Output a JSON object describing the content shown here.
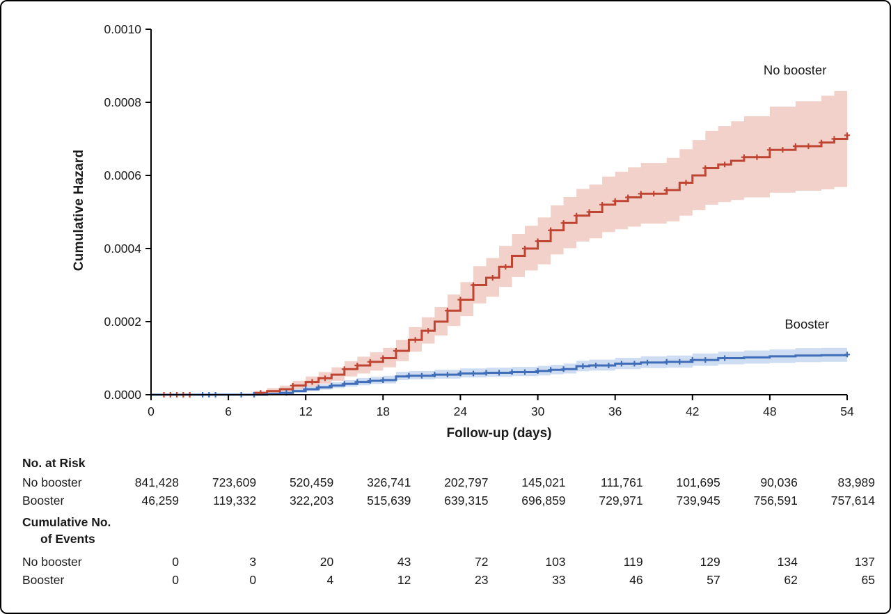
{
  "frame": {
    "background": "#ffffff",
    "border_color": "#000000"
  },
  "chart_data": {
    "type": "line",
    "subtype": "step-cumulative-hazard-with-confidence-bands",
    "title": "",
    "xlabel": "Follow-up (days)",
    "ylabel": "Cumulative Hazard",
    "xlim": [
      0,
      54
    ],
    "ylim": [
      0,
      0.001
    ],
    "xticks": [
      0,
      6,
      12,
      18,
      24,
      30,
      36,
      42,
      48,
      54
    ],
    "ytick_labels": [
      "0.0000",
      "0.0002",
      "0.0004",
      "0.0006",
      "0.0008",
      "0.0010"
    ],
    "grid": false,
    "legend_position": "end-of-line-labels",
    "series": [
      {
        "id": "no-booster",
        "name": "No booster",
        "color": "#bf4532",
        "band_color": "#e9b3a6",
        "label_day": 52.4,
        "label_value": 0.000876,
        "points": [
          [
            0,
            0,
            0,
            0
          ],
          [
            8,
            5e-06,
            2e-06,
            1e-05
          ],
          [
            9,
            1e-05,
            5e-06,
            1.8e-05
          ],
          [
            10,
            1.5e-05,
            8e-06,
            2.5e-05
          ],
          [
            11,
            2.5e-05,
            1.5e-05,
            3.8e-05
          ],
          [
            12,
            3.5e-05,
            2.2e-05,
            5e-05
          ],
          [
            13,
            4.5e-05,
            3e-05,
            6.2e-05
          ],
          [
            14,
            5.5e-05,
            3.8e-05,
            7.5e-05
          ],
          [
            15,
            7e-05,
            5e-05,
            9.2e-05
          ],
          [
            16,
            8e-05,
            5.8e-05,
            0.000104
          ],
          [
            17,
            9e-05,
            6.6e-05,
            0.000116
          ],
          [
            18,
            0.0001,
            7.5e-05,
            0.000128
          ],
          [
            19,
            0.00012,
            9.2e-05,
            0.00015
          ],
          [
            20,
            0.00015,
            0.000118,
            0.000185
          ],
          [
            21,
            0.000175,
            0.00014,
            0.000212
          ],
          [
            22,
            0.0002,
            0.000162,
            0.00024
          ],
          [
            23,
            0.00023,
            0.000188,
            0.000274
          ],
          [
            24,
            0.00026,
            0.000215,
            0.000308
          ],
          [
            25,
            0.0003,
            0.00025,
            0.000352
          ],
          [
            26,
            0.00032,
            0.000268,
            0.000374
          ],
          [
            27,
            0.00035,
            0.000295,
            0.000407
          ],
          [
            28,
            0.00038,
            0.000322,
            0.00044
          ],
          [
            29,
            0.0004,
            0.00034,
            0.000462
          ],
          [
            30,
            0.00042,
            0.000357,
            0.000485
          ],
          [
            31,
            0.00045,
            0.000384,
            0.000518
          ],
          [
            32,
            0.00047,
            0.000401,
            0.000541
          ],
          [
            33,
            0.00049,
            0.000419,
            0.000563
          ],
          [
            34,
            0.0005,
            0.000428,
            0.000575
          ],
          [
            35,
            0.00052,
            0.000445,
            0.000597
          ],
          [
            36,
            0.00053,
            0.000453,
            0.00061
          ],
          [
            37,
            0.00054,
            0.00046,
            0.000622
          ],
          [
            38,
            0.00055,
            0.000468,
            0.000634
          ],
          [
            40,
            0.00056,
            0.000474,
            0.000648
          ],
          [
            41,
            0.00058,
            0.00049,
            0.000672
          ],
          [
            42,
            0.0006,
            0.000505,
            0.000697
          ],
          [
            43,
            0.00062,
            0.00052,
            0.000722
          ],
          [
            44,
            0.00063,
            0.000527,
            0.000735
          ],
          [
            45,
            0.00064,
            0.000533,
            0.000748
          ],
          [
            46,
            0.00065,
            0.00054,
            0.000762
          ],
          [
            48,
            0.00067,
            0.000553,
            0.000788
          ],
          [
            50,
            0.00068,
            0.000558,
            0.000803
          ],
          [
            52,
            0.00069,
            0.000562,
            0.000818
          ],
          [
            53,
            0.0007,
            0.000568,
            0.000831
          ],
          [
            54,
            0.00071,
            0.000573,
            0.000843
          ]
        ],
        "censor_days": [
          1,
          1.5,
          2,
          2.5,
          3,
          8.5,
          11,
          12.5,
          13.5,
          15,
          16,
          17,
          18,
          19,
          20.5,
          21.5,
          23,
          24,
          25,
          26.5,
          27.5,
          29,
          30,
          31,
          32,
          33,
          34,
          35,
          36,
          37,
          38,
          39,
          40,
          41.5,
          43,
          44.5,
          46,
          47,
          48,
          49,
          50,
          51,
          52,
          53,
          54
        ]
      },
      {
        "id": "booster",
        "name": "Booster",
        "color": "#3f6db8",
        "band_color": "#aec6e8",
        "label_day": 52.6,
        "label_value": 0.000181,
        "points": [
          [
            0,
            0,
            0,
            0
          ],
          [
            9,
            2e-06,
            0,
            5e-06
          ],
          [
            10,
            5e-06,
            2e-06,
            1e-05
          ],
          [
            11,
            1e-05,
            6e-06,
            1.6e-05
          ],
          [
            12,
            1.5e-05,
            1e-05,
            2.2e-05
          ],
          [
            13,
            2e-05,
            1.4e-05,
            2.8e-05
          ],
          [
            14,
            2.5e-05,
            1.8e-05,
            3.4e-05
          ],
          [
            15,
            3e-05,
            2.2e-05,
            4e-05
          ],
          [
            16,
            3.5e-05,
            2.6e-05,
            4.6e-05
          ],
          [
            17,
            3.8e-05,
            2.9e-05,
            4.9e-05
          ],
          [
            18,
            4e-05,
            3.1e-05,
            5.2e-05
          ],
          [
            19,
            5e-05,
            4e-05,
            6.3e-05
          ],
          [
            20,
            5.2e-05,
            4.2e-05,
            6.5e-05
          ],
          [
            22,
            5.5e-05,
            4.4e-05,
            6.8e-05
          ],
          [
            24,
            5.8e-05,
            4.7e-05,
            7.2e-05
          ],
          [
            26,
            6e-05,
            4.9e-05,
            7.4e-05
          ],
          [
            28,
            6.2e-05,
            5.1e-05,
            7.6e-05
          ],
          [
            30,
            6.5e-05,
            5.3e-05,
            7.9e-05
          ],
          [
            31,
            6.8e-05,
            5.6e-05,
            8.2e-05
          ],
          [
            32,
            7e-05,
            5.8e-05,
            8.5e-05
          ],
          [
            33,
            7.8e-05,
            6.4e-05,
            9.3e-05
          ],
          [
            34,
            8e-05,
            6.6e-05,
            9.6e-05
          ],
          [
            36,
            8.5e-05,
            7e-05,
            0.000101
          ],
          [
            38,
            8.8e-05,
            7.3e-05,
            0.000105
          ],
          [
            40,
            9e-05,
            7.4e-05,
            0.000107
          ],
          [
            42,
            9.5e-05,
            7.9e-05,
            0.000113
          ],
          [
            44,
            0.0001,
            8.3e-05,
            0.000118
          ],
          [
            46,
            0.000102,
            8.5e-05,
            0.000121
          ],
          [
            48,
            0.000105,
            8.7e-05,
            0.000124
          ],
          [
            50,
            0.000107,
            8.9e-05,
            0.000127
          ],
          [
            52,
            0.000108,
            9e-05,
            0.000128
          ],
          [
            54,
            0.00011,
            9.1e-05,
            0.00013
          ]
        ],
        "censor_days": [
          4,
          4.5,
          5,
          7,
          8,
          10.5,
          12,
          13,
          14,
          15,
          16,
          17,
          18,
          20,
          21,
          22,
          23,
          24,
          25,
          26,
          27,
          28,
          29,
          30,
          31,
          32,
          33.5,
          34.5,
          35.5,
          36.5,
          37.5,
          38.5,
          40,
          41,
          42,
          43,
          44.5,
          54
        ]
      }
    ]
  },
  "risk_table": {
    "header_at_risk": "No. at Risk",
    "rows_at_risk": [
      {
        "label": "No booster",
        "values": [
          "841,428",
          "723,609",
          "520,459",
          "326,741",
          "202,797",
          "145,021",
          "111,761",
          "101,695",
          "90,036",
          "83,989"
        ]
      },
      {
        "label": "Booster",
        "values": [
          "46,259",
          "119,332",
          "322,203",
          "515,639",
          "639,315",
          "696,859",
          "729,971",
          "739,945",
          "756,591",
          "757,614"
        ]
      }
    ],
    "header_events_line1": "Cumulative No.",
    "header_events_line2": "of Events",
    "rows_events": [
      {
        "label": "No booster",
        "values": [
          "0",
          "3",
          "20",
          "43",
          "72",
          "103",
          "119",
          "129",
          "134",
          "137"
        ]
      },
      {
        "label": "Booster",
        "values": [
          "0",
          "0",
          "4",
          "12",
          "23",
          "33",
          "46",
          "57",
          "62",
          "65"
        ]
      }
    ]
  }
}
